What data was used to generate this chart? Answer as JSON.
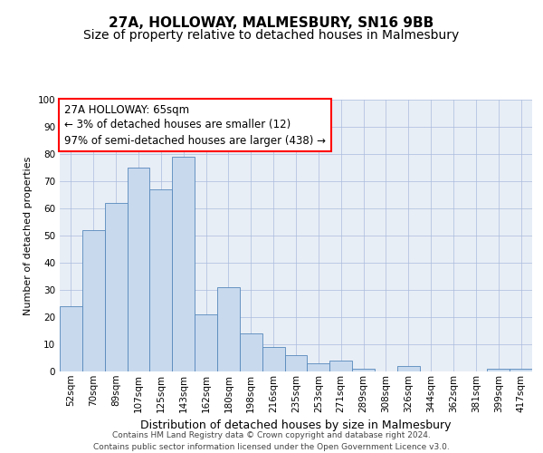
{
  "title1": "27A, HOLLOWAY, MALMESBURY, SN16 9BB",
  "title2": "Size of property relative to detached houses in Malmesbury",
  "xlabel": "Distribution of detached houses by size in Malmesbury",
  "ylabel": "Number of detached properties",
  "categories": [
    "52sqm",
    "70sqm",
    "89sqm",
    "107sqm",
    "125sqm",
    "143sqm",
    "162sqm",
    "180sqm",
    "198sqm",
    "216sqm",
    "235sqm",
    "253sqm",
    "271sqm",
    "289sqm",
    "308sqm",
    "326sqm",
    "344sqm",
    "362sqm",
    "381sqm",
    "399sqm",
    "417sqm"
  ],
  "values": [
    24,
    52,
    62,
    75,
    67,
    79,
    21,
    31,
    14,
    9,
    6,
    3,
    4,
    1,
    0,
    2,
    0,
    0,
    0,
    1,
    1
  ],
  "bar_color": "#c8d9ee",
  "bar_edge_color": "#5588bb",
  "ylim": [
    0,
    100
  ],
  "yticks": [
    0,
    10,
    20,
    30,
    40,
    50,
    60,
    70,
    80,
    90,
    100
  ],
  "annotation_line1": "27A HOLLOWAY: 65sqm",
  "annotation_line2": "← 3% of detached houses are smaller (12)",
  "annotation_line3": "97% of semi-detached houses are larger (438) →",
  "footer1": "Contains HM Land Registry data © Crown copyright and database right 2024.",
  "footer2": "Contains public sector information licensed under the Open Government Licence v3.0.",
  "grid_color": "#aabbdd",
  "background_color": "#e8eef6",
  "title1_fontsize": 11,
  "title2_fontsize": 10,
  "xlabel_fontsize": 9,
  "ylabel_fontsize": 8,
  "tick_fontsize": 7.5,
  "annotation_fontsize": 8.5,
  "footer_fontsize": 6.5
}
